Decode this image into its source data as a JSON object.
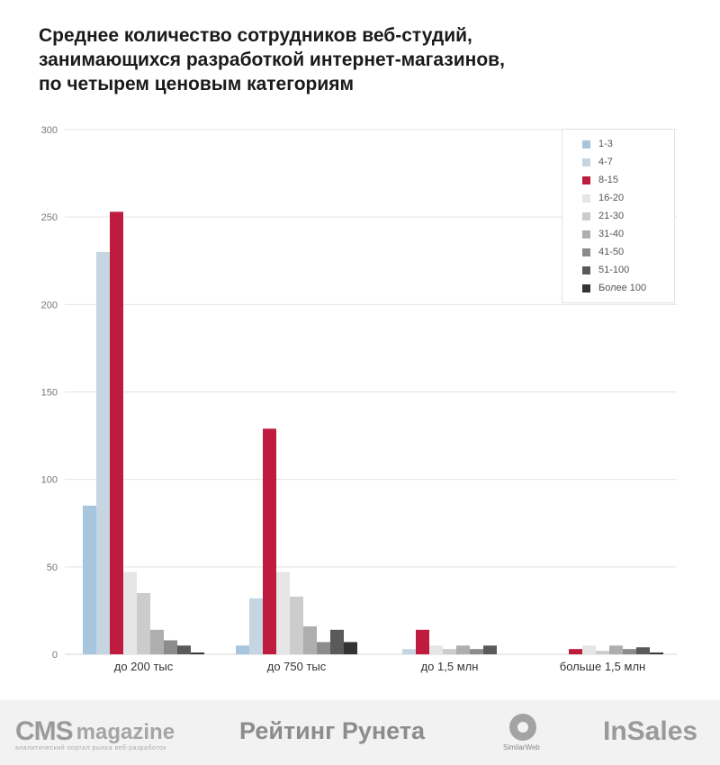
{
  "title_lines": [
    "Среднее количество сотрудников веб-студий,",
    "занимающихся разработкой интернет-магазинов,",
    "по четырем ценовым категориям"
  ],
  "chart_data": {
    "type": "bar",
    "title": "Среднее количество сотрудников веб-студий, занимающихся разработкой интернет-магазинов, по четырем ценовым категориям",
    "categories": [
      "до 200 тыс",
      "до 750 тыс",
      "до 1,5 млн",
      "больше 1,5 млн"
    ],
    "ylim": [
      0,
      300
    ],
    "yticks": [
      0,
      50,
      100,
      150,
      200,
      250,
      300
    ],
    "grid": true,
    "legend_position": "top-right",
    "series": [
      {
        "name": "1-3",
        "color": "#a7c6dd",
        "values": [
          85,
          5,
          0,
          0
        ]
      },
      {
        "name": "4-7",
        "color": "#c5d6e2",
        "values": [
          230,
          32,
          3,
          0
        ]
      },
      {
        "name": "8-15",
        "color": "#be1b3f",
        "values": [
          253,
          129,
          14,
          3
        ]
      },
      {
        "name": "16-20",
        "color": "#e6e6e6",
        "values": [
          47,
          47,
          5,
          5
        ]
      },
      {
        "name": "21-30",
        "color": "#cccccc",
        "values": [
          35,
          33,
          3,
          2
        ]
      },
      {
        "name": "31-40",
        "color": "#aeaeae",
        "values": [
          14,
          16,
          5,
          5
        ]
      },
      {
        "name": "41-50",
        "color": "#8c8c8c",
        "values": [
          8,
          7,
          3,
          3
        ]
      },
      {
        "name": "51-100",
        "color": "#5a5a5a",
        "values": [
          5,
          14,
          5,
          4
        ]
      },
      {
        "name": "Более 100",
        "color": "#333333",
        "values": [
          1,
          7,
          0,
          1
        ]
      }
    ]
  },
  "footer": {
    "cms_main": "CMS",
    "cms_magazine": "magazine",
    "cms_subtitle": "аналитический портал рынка веб-разработок",
    "runet": "Рейтинг Рунета",
    "similarweb": "SimilarWeb",
    "insales": "InSales"
  }
}
